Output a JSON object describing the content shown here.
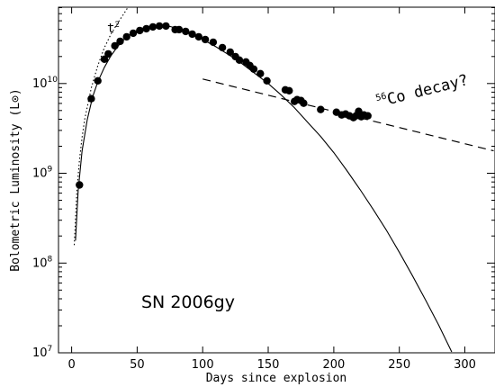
{
  "chart_data": {
    "type": "scatter",
    "title": "SN 2006gy",
    "xlabel": "Days since explosion",
    "ylabel": "Bolometric Luminosity (L⊙)",
    "xlim": [
      -10,
      323
    ],
    "ylim_log10": [
      7.0,
      10.85
    ],
    "log_scale_y": true,
    "grid": false,
    "x_ticks": [
      0,
      50,
      100,
      150,
      200,
      250,
      300
    ],
    "y_ticks": [
      {
        "power": 7,
        "label": "10",
        "exp": "7"
      },
      {
        "power": 8,
        "label": "10",
        "exp": "8"
      },
      {
        "power": 9,
        "label": "10",
        "exp": "9"
      },
      {
        "power": 10,
        "label": "10",
        "exp": "10"
      }
    ],
    "annotations": {
      "t2": {
        "base": "t",
        "exp": "2"
      },
      "co_decay": {
        "sup": "56",
        "text": "Co decay?"
      }
    },
    "series": [
      {
        "kind": "points",
        "points": [
          [
            6,
            8.87
          ],
          [
            15,
            9.83
          ],
          [
            20,
            10.03
          ],
          [
            25,
            10.27
          ],
          [
            28,
            10.33
          ],
          [
            33,
            10.42
          ],
          [
            37,
            10.47
          ],
          [
            42,
            10.52
          ],
          [
            47,
            10.56
          ],
          [
            52,
            10.59
          ],
          [
            57,
            10.61
          ],
          [
            62,
            10.63
          ],
          [
            67,
            10.64
          ],
          [
            72,
            10.64
          ],
          [
            79,
            10.6
          ],
          [
            82,
            10.6
          ],
          [
            87,
            10.58
          ],
          [
            92,
            10.55
          ],
          [
            97,
            10.52
          ],
          [
            102,
            10.49
          ],
          [
            108,
            10.46
          ],
          [
            115,
            10.4
          ],
          [
            121,
            10.35
          ],
          [
            125,
            10.3
          ],
          [
            128,
            10.26
          ],
          [
            133,
            10.24
          ],
          [
            136,
            10.2
          ],
          [
            139,
            10.16
          ],
          [
            144,
            10.11
          ],
          [
            149,
            10.03
          ],
          [
            163,
            9.93
          ],
          [
            166,
            9.92
          ],
          [
            170,
            9.8
          ],
          [
            172,
            9.82
          ],
          [
            175,
            9.81
          ],
          [
            177,
            9.78
          ],
          [
            190,
            9.71
          ],
          [
            202,
            9.68
          ],
          [
            206,
            9.65
          ],
          [
            209,
            9.66
          ],
          [
            212,
            9.64
          ],
          [
            215,
            9.62
          ],
          [
            217,
            9.64
          ],
          [
            219,
            9.69
          ],
          [
            221,
            9.63
          ],
          [
            223,
            9.65
          ],
          [
            226,
            9.64
          ]
        ]
      },
      {
        "kind": "solid-model",
        "points": [
          [
            3,
            8.25
          ],
          [
            5,
            8.8
          ],
          [
            8,
            9.25
          ],
          [
            12,
            9.6
          ],
          [
            16,
            9.85
          ],
          [
            20,
            10.02
          ],
          [
            25,
            10.18
          ],
          [
            30,
            10.31
          ],
          [
            35,
            10.41
          ],
          [
            40,
            10.49
          ],
          [
            45,
            10.55
          ],
          [
            50,
            10.59
          ],
          [
            55,
            10.62
          ],
          [
            60,
            10.64
          ],
          [
            65,
            10.645
          ],
          [
            70,
            10.645
          ],
          [
            75,
            10.635
          ],
          [
            80,
            10.615
          ],
          [
            90,
            10.56
          ],
          [
            100,
            10.49
          ],
          [
            110,
            10.41
          ],
          [
            120,
            10.32
          ],
          [
            130,
            10.22
          ],
          [
            140,
            10.11
          ],
          [
            150,
            10.0
          ],
          [
            160,
            9.87
          ],
          [
            170,
            9.73
          ],
          [
            180,
            9.57
          ],
          [
            190,
            9.41
          ],
          [
            200,
            9.23
          ],
          [
            210,
            9.03
          ],
          [
            220,
            8.82
          ],
          [
            230,
            8.6
          ],
          [
            240,
            8.37
          ],
          [
            250,
            8.12
          ],
          [
            260,
            7.86
          ],
          [
            270,
            7.59
          ],
          [
            280,
            7.31
          ],
          [
            290,
            7.01
          ]
        ]
      },
      {
        "kind": "dotted-t2",
        "points": [
          [
            2,
            8.2
          ],
          [
            4,
            8.8
          ],
          [
            6,
            9.15
          ],
          [
            8,
            9.4
          ],
          [
            10,
            9.6
          ],
          [
            15,
            9.95
          ],
          [
            20,
            10.2
          ],
          [
            25,
            10.4
          ],
          [
            30,
            10.55
          ],
          [
            35,
            10.67
          ],
          [
            40,
            10.78
          ],
          [
            43,
            10.85
          ]
        ]
      },
      {
        "kind": "dashed-co-decay",
        "points": [
          [
            100,
            10.05
          ],
          [
            322,
            9.25
          ]
        ]
      }
    ]
  }
}
